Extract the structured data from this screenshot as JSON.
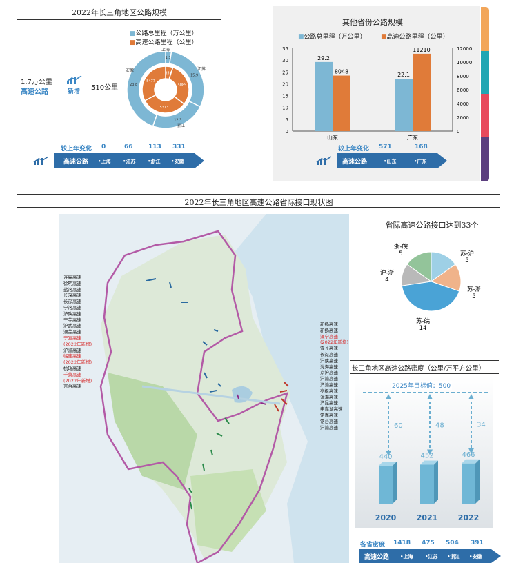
{
  "panel1": {
    "title": "2022年长三角地区公路规模",
    "legend": [
      "公路总里程（万公里）",
      "高速公路里程（公里）"
    ],
    "stat_total": "1.7万公里",
    "stat_total_label": "高速公路",
    "stat_new_label": "新增",
    "stat_new_value": "510公里",
    "change_label": "较上年变化",
    "change_values": [
      "0",
      "66",
      "113",
      "331"
    ],
    "bar_label": "高速公路",
    "bar_items": [
      "•上海",
      "•江苏",
      "•浙江",
      "•安徽"
    ]
  },
  "panel2": {
    "title": "其他省份公路规模",
    "legend": [
      "公路总里程（万公里）",
      "高速公路里程（公里）"
    ],
    "change_label": "较上年变化",
    "change_values": [
      "571",
      "168"
    ],
    "bar_label": "高速公路",
    "bar_items": [
      "•山东",
      "•广东"
    ]
  },
  "panel3": {
    "title": "2022年长三角地区高速公路省际接口现状图",
    "left_labels": [
      "连霍高速",
      "徐明高速",
      "盐洛高速",
      "长深高速",
      "长深高速",
      "宁洛高速",
      "沪陕高速",
      "宁芜高速",
      "沪武高速",
      "溧芜高速",
      "宁宣高速",
      "(2022年新增)",
      "沪渝高速",
      "临建高速",
      "(2022年新增)",
      "杭瑞高速",
      "千黄高速",
      "(2022年新增)",
      "京台高速"
    ],
    "right_labels": [
      "新扬高速",
      "新扬高速",
      "溧宁高速",
      "(2022年新增)",
      "宜长高速",
      "长深高速",
      "沪陕高速",
      "沈海高速",
      "京沪高速",
      "沪渝高速",
      "沪渝高速",
      "亭枫高速",
      "沈海高速",
      "沪昆高速",
      "申嘉湖高速",
      "常嘉高速",
      "常台高速",
      "沪渝高速"
    ]
  },
  "panel4": {
    "title": "省际高速公路接口达到33个"
  },
  "panel5": {
    "title": "长三角地区高速公路密度（公里/万平方公里）",
    "target_label": "2025年目标值：500",
    "density_label": "各省密度",
    "density_values": [
      "1418",
      "475",
      "504",
      "391"
    ],
    "bar_label": "高速公路",
    "bar_items": [
      "•上海",
      "•江苏",
      "•浙江",
      "•安徽"
    ]
  },
  "chart_data": [
    {
      "type": "pie",
      "chart": "donut",
      "categories": [
        "上海",
        "江苏",
        "浙江",
        "安徽"
      ],
      "series": [
        {
          "name": "公路总里程（万公里）",
          "values": [
            1.3,
            15.9,
            12.3,
            23.8
          ]
        },
        {
          "name": "高速公路里程（公里）",
          "values": [
            851,
            5089,
            5313,
            5477
          ]
        }
      ],
      "colors": {
        "outer": "#7db7d4",
        "inner": "#e07b39"
      }
    },
    {
      "type": "bar",
      "categories": [
        "山东",
        "广东"
      ],
      "series": [
        {
          "name": "公路总里程（万公里）",
          "values": [
            29.2,
            22.1
          ],
          "axis": "left"
        },
        {
          "name": "高速公路里程（公里）",
          "values": [
            8048,
            11210
          ],
          "axis": "right"
        }
      ],
      "ylim_left": [
        0,
        35
      ],
      "ylim_right": [
        0,
        12000
      ],
      "colors": [
        "#7db7d4",
        "#e07b39"
      ]
    },
    {
      "type": "pie",
      "categories": [
        "苏-沪",
        "苏-浙",
        "苏-皖",
        "沪-浙",
        "浙-皖"
      ],
      "values": [
        5,
        5,
        14,
        4,
        5
      ],
      "colors": [
        "#9ed0e6",
        "#f0b38a",
        "#4aa3d6",
        "#b9b9b9",
        "#93c49a"
      ]
    },
    {
      "type": "bar",
      "categories": [
        "2020",
        "2021",
        "2022"
      ],
      "values": [
        440,
        452,
        466
      ],
      "gap_to_target": [
        60,
        48,
        34
      ],
      "target": 500,
      "color": "#6fb7d6"
    }
  ]
}
